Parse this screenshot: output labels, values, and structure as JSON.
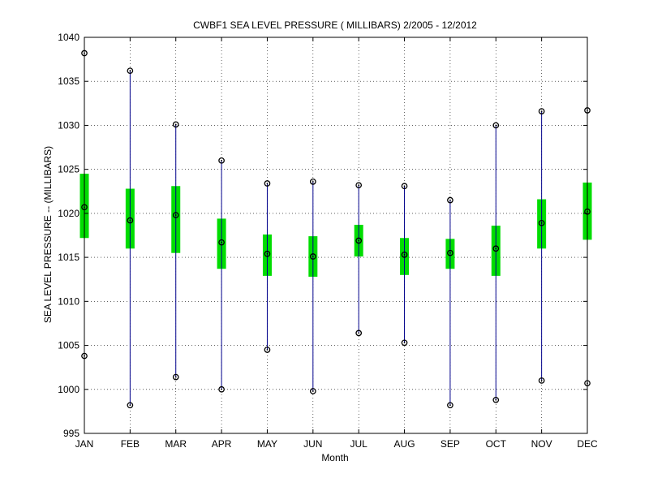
{
  "chart_data": {
    "type": "box",
    "title": "CWBF1  SEA LEVEL PRESSURE ( MILLIBARS) 2/2005 - 12/2012",
    "xlabel": "Month",
    "ylabel": "SEA LEVEL PRESSURE -- (MILLIBARS)",
    "ylim": [
      995,
      1040
    ],
    "yticks": [
      995,
      1000,
      1005,
      1010,
      1015,
      1020,
      1025,
      1030,
      1035,
      1040
    ],
    "grid": true,
    "categories": [
      "JAN",
      "FEB",
      "MAR",
      "APR",
      "MAY",
      "JUN",
      "JUL",
      "AUG",
      "SEP",
      "OCT",
      "NOV",
      "DEC"
    ],
    "series": [
      {
        "stat": "max",
        "values": [
          1038.2,
          1036.2,
          1030.1,
          1026.0,
          1023.4,
          1023.6,
          1023.2,
          1023.1,
          1021.5,
          1030.0,
          1031.6,
          1031.7
        ]
      },
      {
        "stat": "upper_quartile",
        "values": [
          1024.5,
          1022.8,
          1023.1,
          1019.4,
          1017.6,
          1017.4,
          1018.7,
          1017.2,
          1017.1,
          1018.6,
          1021.6,
          1023.5
        ]
      },
      {
        "stat": "mean",
        "values": [
          1020.7,
          1019.2,
          1019.8,
          1016.7,
          1015.4,
          1015.1,
          1016.9,
          1015.3,
          1015.5,
          1016.0,
          1018.9,
          1020.2
        ]
      },
      {
        "stat": "lower_quartile",
        "values": [
          1017.2,
          1016.0,
          1015.5,
          1013.7,
          1012.9,
          1012.8,
          1015.1,
          1013.0,
          1013.7,
          1012.9,
          1016.0,
          1017.0
        ]
      },
      {
        "stat": "min",
        "values": [
          1003.8,
          998.2,
          1001.4,
          1000.0,
          1004.5,
          999.8,
          1006.4,
          1005.3,
          998.2,
          998.8,
          1001.0,
          1000.7
        ]
      }
    ],
    "colors": {
      "whisker": "#00008b",
      "box": "#00dd00",
      "marker": "#000000",
      "axis": "#000000",
      "grid": "#000000"
    }
  }
}
